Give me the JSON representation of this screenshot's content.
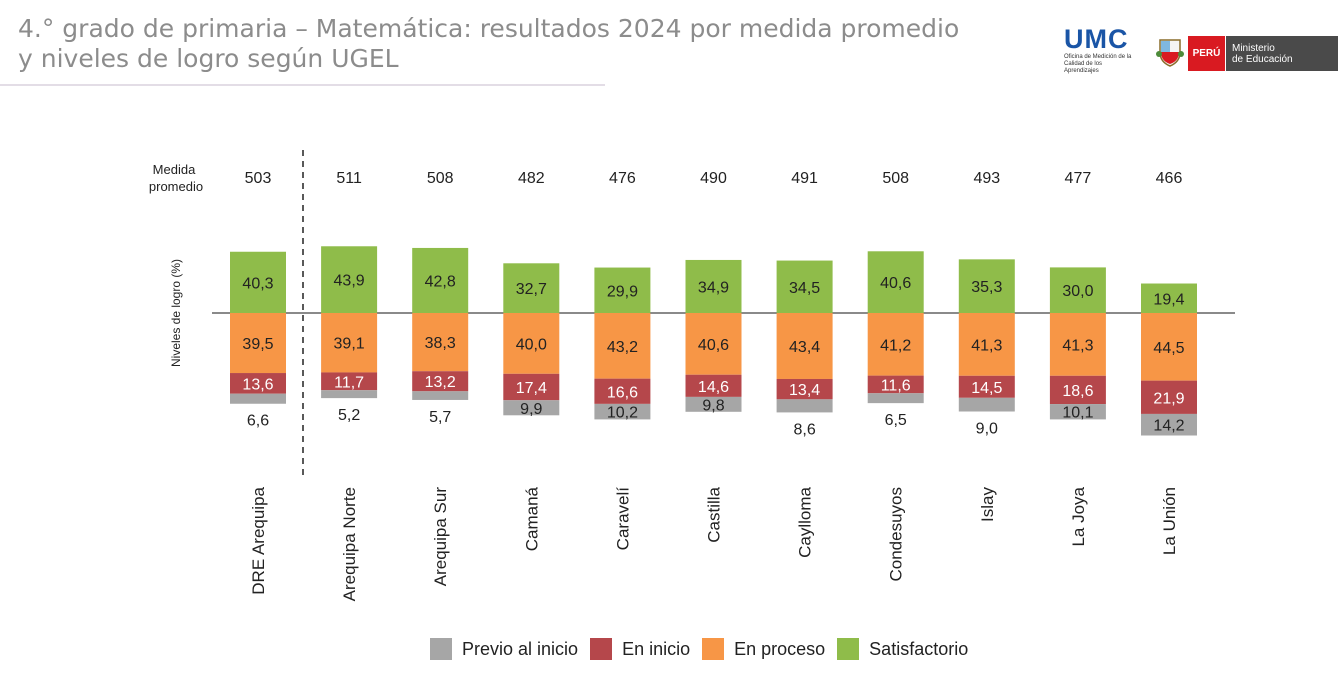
{
  "header": {
    "title": "4.° grado de primaria – Matemática: resultados 2024 por medida promedio y niveles de logro según UGEL"
  },
  "logos": {
    "umc_main": "UMC",
    "umc_sub": "Oficina de Medición de la Calidad de los Aprendizajes",
    "peru": "PERÚ",
    "ministry": [
      "Ministerio",
      "de Educación"
    ]
  },
  "chart_data": {
    "type": "bar",
    "stacked": "diverging",
    "row_label_medida": [
      "Medida",
      "promedio"
    ],
    "ylabel": "Niveles de logro (%)",
    "categories": [
      "DRE Arequipa",
      "Arequipa Norte",
      "Arequipa Sur",
      "Camaná",
      "Caravelí",
      "Castilla",
      "Caylloma",
      "Condesuyos",
      "Islay",
      "La Joya",
      "La Unión"
    ],
    "medida_promedio": [
      503,
      511,
      508,
      482,
      476,
      490,
      491,
      508,
      493,
      477,
      466
    ],
    "series": [
      {
        "name": "Previo al inicio",
        "color": "#a6a6a6",
        "direction": "below",
        "values": [
          6.6,
          5.2,
          5.7,
          9.9,
          10.2,
          9.8,
          8.6,
          6.5,
          9.0,
          10.1,
          14.2
        ],
        "labels": [
          "6,6",
          "5,2",
          "5,7",
          "9,9",
          "10,2",
          "9,8",
          "8,6",
          "6,5",
          "9,0",
          "10,1",
          "14,2"
        ]
      },
      {
        "name": "En inicio",
        "color": "#b5474b",
        "direction": "below",
        "values": [
          13.6,
          11.7,
          13.2,
          17.4,
          16.6,
          14.6,
          13.4,
          11.6,
          14.5,
          18.6,
          21.9
        ],
        "labels": [
          "13,6",
          "11,7",
          "13,2",
          "17,4",
          "16,6",
          "14,6",
          "13,4",
          "11,6",
          "14,5",
          "18,6",
          "21,9"
        ]
      },
      {
        "name": "En proceso",
        "color": "#f79646",
        "direction": "below",
        "values": [
          39.5,
          39.1,
          38.3,
          40.0,
          43.2,
          40.6,
          43.4,
          41.2,
          41.3,
          41.3,
          44.5
        ],
        "labels": [
          "39,5",
          "39,1",
          "38,3",
          "40,0",
          "43,2",
          "40,6",
          "43,4",
          "41,2",
          "41,3",
          "41,3",
          "44,5"
        ]
      },
      {
        "name": "Satisfactorio",
        "color": "#8fbc4a",
        "direction": "above",
        "values": [
          40.3,
          43.9,
          42.8,
          32.7,
          29.9,
          34.9,
          34.5,
          40.6,
          35.3,
          30.0,
          19.4
        ],
        "labels": [
          "40,3",
          "43,9",
          "42,8",
          "32,7",
          "29,9",
          "34,9",
          "34,5",
          "40,6",
          "35,3",
          "30,0",
          "19,4"
        ]
      }
    ],
    "legend_order": [
      "Previo al inicio",
      "En inicio",
      "En proceso",
      "Satisfactorio"
    ],
    "legend_position": "bottom",
    "grid": false
  }
}
